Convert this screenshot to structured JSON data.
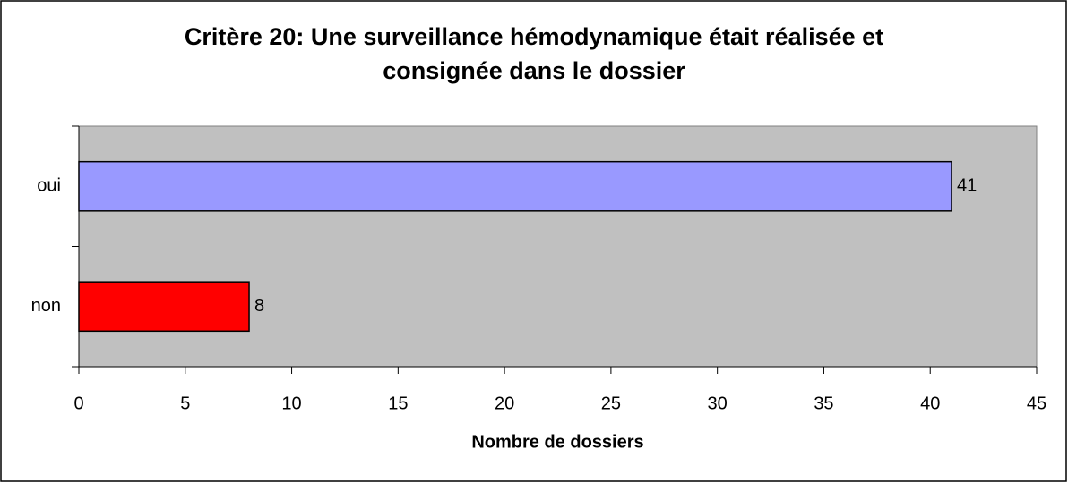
{
  "chart_data": {
    "type": "barh",
    "title": "Critère 20: Une surveillance hémodynamique était réalisée et consignée dans le dossier",
    "categories": [
      "oui",
      "non"
    ],
    "values": [
      41,
      8
    ],
    "colors": [
      "#9999ff",
      "#ff0000"
    ],
    "xlabel": "Nombre de dossiers",
    "xlim": [
      0,
      45
    ],
    "xticks": [
      0,
      5,
      10,
      15,
      20,
      25,
      30,
      35,
      40,
      45
    ],
    "plot_background": "#c0c0c0"
  }
}
